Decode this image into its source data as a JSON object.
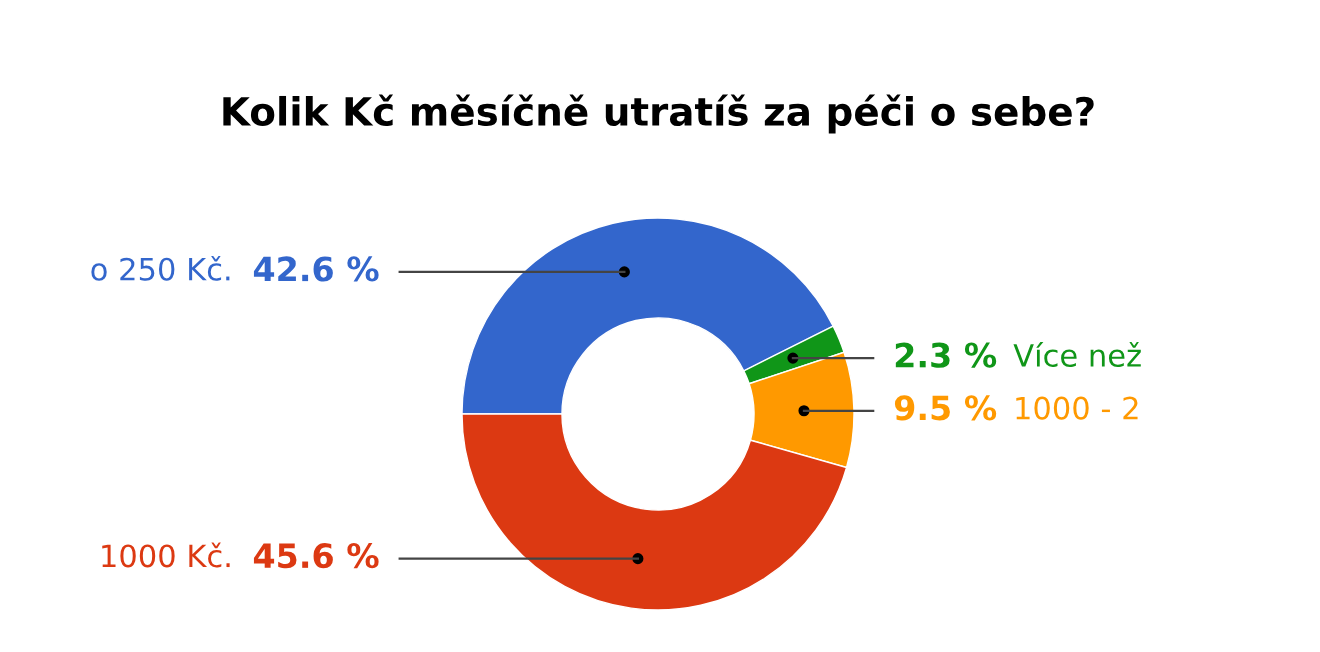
{
  "chart_data": {
    "type": "donut",
    "title": "Kolik Kč měsíčně utratíš za péči o sebe?",
    "categories": [
      "o 250 Kč.",
      "Více než",
      "1000 - 2",
      "1000 Kč."
    ],
    "values": [
      42.6,
      2.3,
      9.5,
      45.6
    ],
    "value_labels": [
      "42.6 %",
      "2.3 %",
      "9.5 %",
      "45.6 %"
    ],
    "colors": [
      "#3366cc",
      "#109618",
      "#ff9900",
      "#dc3912"
    ],
    "legend": false
  }
}
